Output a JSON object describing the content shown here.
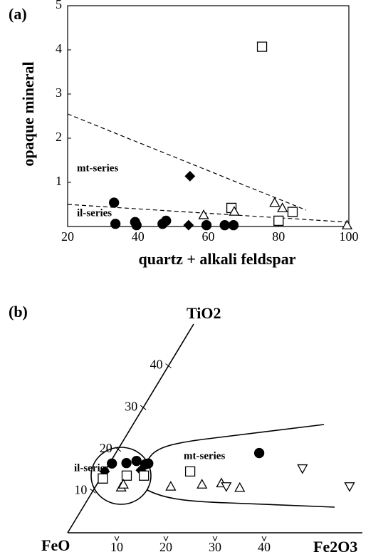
{
  "chart_data": [
    {
      "type": "scatter",
      "panel": "(a)",
      "xlabel": "quartz + alkali feldspar",
      "ylabel": "opaque mineral",
      "xlim": [
        20,
        100
      ],
      "xticks": [
        20,
        40,
        60,
        80,
        100
      ],
      "ylim": [
        0,
        5
      ],
      "yticks": [
        1,
        2,
        3,
        4,
        5
      ],
      "annotations": [
        "mt-series",
        "il-series"
      ],
      "series": [
        {
          "marker": "circle",
          "filled": true,
          "color": "#000",
          "x": [
            33.2,
            33.6,
            39.2,
            39.6,
            47,
            48,
            59.5,
            64.7,
            67.2
          ],
          "values": [
            0.54,
            0.06,
            0.1,
            0.03,
            0.06,
            0.13,
            0.03,
            0.03,
            0.03
          ]
        },
        {
          "marker": "diamond",
          "filled": true,
          "color": "#000",
          "x": [
            54.8,
            54.4
          ],
          "values": [
            1.14,
            0.03
          ]
        },
        {
          "marker": "square",
          "filled": false,
          "color": "#000",
          "x": [
            75.3,
            66.6,
            80,
            84
          ],
          "values": [
            4.07,
            0.42,
            0.13,
            0.33
          ]
        },
        {
          "marker": "triangle",
          "filled": false,
          "color": "#000",
          "x": [
            58.7,
            67.4,
            78.9,
            81.1,
            99.5
          ],
          "values": [
            0.26,
            0.34,
            0.54,
            0.42,
            0.03
          ]
        }
      ]
    },
    {
      "type": "ternary",
      "panel": "(b)",
      "vertices": {
        "top": "TiO2",
        "left": "FeO",
        "right": "Fe2O3"
      },
      "tio2_lim": [
        0,
        50
      ],
      "tio2_ticks": [
        10,
        20,
        30,
        40
      ],
      "fe2o3_lim": [
        0,
        60
      ],
      "fe2o3_ticks": [
        10,
        20,
        30,
        40
      ],
      "annotations": [
        "il-series",
        "mt-series"
      ],
      "series": [
        {
          "marker": "circle",
          "filled": true,
          "color": "#000",
          "fe2o3": [
            0.5,
            3.4,
            5.2,
            7.4,
            7.9,
            29.2
          ],
          "tio2": [
            16.6,
            16.7,
            17.2,
            16.4,
            16.6,
            19.1
          ]
        },
        {
          "marker": "diamond",
          "filled": true,
          "color": "#000",
          "fe2o3": [
            0,
            7.2
          ],
          "tio2": [
            14.7,
            15.0
          ]
        },
        {
          "marker": "square",
          "filled": false,
          "color": "#000",
          "fe2o3": [
            0.5,
            5.0,
            8.5,
            17.4
          ],
          "tio2": [
            13,
            13.7,
            13.7,
            14.7
          ]
        },
        {
          "marker": "triangle",
          "filled": false,
          "color": "#000",
          "fe2o3": [
            5.3,
            5.4,
            15.3,
            21.4,
            25.2,
            29.5
          ],
          "tio2": [
            10.9,
            11.6,
            11.1,
            11.6,
            11.9,
            10.8
          ]
        },
        {
          "marker": "triangle-down",
          "filled": false,
          "color": "#000",
          "fe2o3": [
            26.6,
            39.9,
            51.7
          ],
          "tio2": [
            11.1,
            15.4,
            11.1
          ]
        }
      ]
    }
  ]
}
